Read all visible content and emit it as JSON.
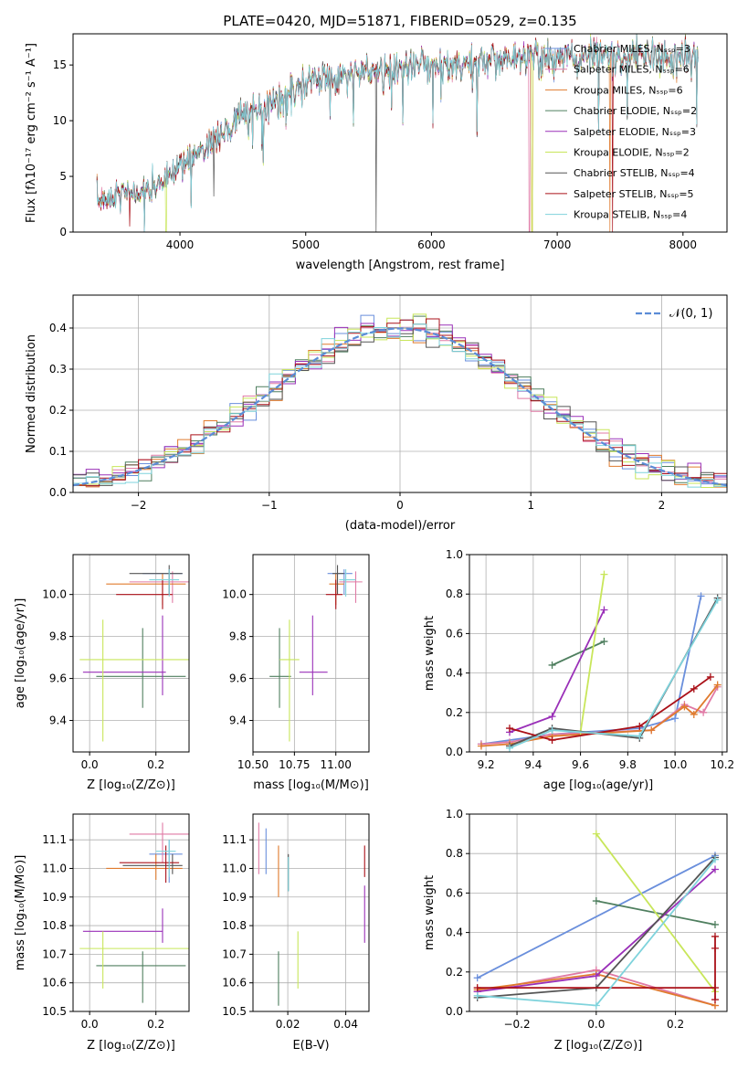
{
  "colors": {
    "chabrier_miles": "#6a8fdc",
    "salpeter_miles": "#e07aa5",
    "kroupa_miles": "#e07b2e",
    "chabrier_elodie": "#4f7f5f",
    "salpeter_elodie": "#9a30b8",
    "kroupa_elodie": "#c8e65a",
    "chabrier_stelib": "#555555",
    "salpeter_stelib": "#aa1018",
    "kroupa_stelib": "#7fd3dc",
    "normal": "#5b8cd6"
  },
  "chart_data": [
    {
      "id": "spectrum",
      "type": "line",
      "title": "PLATE=0420, MJD=51871, FIBERID=0529, z=0.135",
      "xlabel": "wavelength [Angstrom, rest frame]",
      "ylabel": "Flux [fλ10⁻¹⁷ erg cm⁻² s⁻¹ A⁻¹]",
      "xlim": [
        3150,
        8350
      ],
      "ylim": [
        0,
        17.8
      ],
      "xticks": [
        4000,
        5000,
        6000,
        7000,
        8000
      ],
      "yticks": [
        0,
        5,
        10,
        15
      ],
      "grid": false,
      "legend": "top-right",
      "spectrum_range": [
        3340,
        8120
      ],
      "shape_knots": [
        [
          3340,
          2.7
        ],
        [
          3500,
          3.4
        ],
        [
          3700,
          3.6
        ],
        [
          3850,
          4.3
        ],
        [
          4000,
          6.0
        ],
        [
          4200,
          7.6
        ],
        [
          4400,
          9.5
        ],
        [
          4600,
          11.0
        ],
        [
          4800,
          11.8
        ],
        [
          5000,
          13.2
        ],
        [
          5200,
          13.8
        ],
        [
          5400,
          14.3
        ],
        [
          5700,
          14.7
        ],
        [
          6000,
          15.0
        ],
        [
          6300,
          15.2
        ],
        [
          6600,
          15.5
        ],
        [
          7000,
          15.6
        ],
        [
          7400,
          15.8
        ],
        [
          7800,
          15.7
        ],
        [
          8120,
          15.6
        ]
      ],
      "series": [
        {
          "name": "Chabrier MILES, Nₛₛₚ=3",
          "color_key": "chabrier_miles"
        },
        {
          "name": "Salpeter MILES, Nₛₛₚ=6",
          "color_key": "salpeter_miles"
        },
        {
          "name": "Kroupa MILES, Nₛₛₚ=6",
          "color_key": "kroupa_miles"
        },
        {
          "name": "Chabrier ELODIE, Nₛₛₚ=2",
          "color_key": "chabrier_elodie"
        },
        {
          "name": "Salpeter ELODIE, Nₛₛₚ=3",
          "color_key": "salpeter_elodie"
        },
        {
          "name": "Kroupa ELODIE, Nₛₛₚ=2",
          "color_key": "kroupa_elodie"
        },
        {
          "name": "Chabrier STELIB, Nₛₛₚ=4",
          "color_key": "chabrier_stelib"
        },
        {
          "name": "Salpeter STELIB, Nₛₛₚ=5",
          "color_key": "salpeter_stelib"
        },
        {
          "name": "Kroupa STELIB, Nₛₛₚ=4",
          "color_key": "kroupa_stelib"
        }
      ]
    },
    {
      "id": "residuals",
      "type": "line",
      "xlabel": "(data-model)/error",
      "ylabel": "Normed distribution",
      "xlim": [
        -2.5,
        2.5
      ],
      "ylim": [
        0,
        0.48
      ],
      "xticks": [
        -2,
        -1,
        0,
        1,
        2
      ],
      "yticks": [
        0.0,
        0.1,
        0.2,
        0.3,
        0.4
      ],
      "grid": true,
      "legend": "top-right",
      "legend_label": "𝒩(0, 1)",
      "bin_width": 0.1
    },
    {
      "id": "z_age",
      "type": "scatter",
      "xlabel": "Z [log₁₀(Z/Z⊙)]",
      "ylabel": "age  [log₁₀(age/yr)]",
      "xlim": [
        -0.05,
        0.3
      ],
      "ylim": [
        9.25,
        10.19
      ],
      "xticks": [
        0.0,
        0.2
      ],
      "yticks": [
        9.4,
        9.6,
        9.8,
        10.0
      ],
      "grid": true,
      "points": [
        {
          "c": "chabrier_miles",
          "x": 0.24,
          "xe": [
            0.16,
            0.28
          ],
          "y": 10.1,
          "ye": [
            10.0,
            10.12
          ]
        },
        {
          "c": "salpeter_miles",
          "x": 0.25,
          "xe": [
            0.12,
            0.3
          ],
          "y": 10.06,
          "ye": [
            9.96,
            10.11
          ]
        },
        {
          "c": "kroupa_miles",
          "x": 0.22,
          "xe": [
            0.05,
            0.29
          ],
          "y": 10.05,
          "ye": [
            9.95,
            10.1
          ]
        },
        {
          "c": "chabrier_elodie",
          "x": 0.16,
          "xe": [
            0.02,
            0.29
          ],
          "y": 9.61,
          "ye": [
            9.46,
            9.84
          ]
        },
        {
          "c": "salpeter_elodie",
          "x": 0.22,
          "xe": [
            -0.02,
            0.23
          ],
          "y": 9.63,
          "ye": [
            9.52,
            9.9
          ]
        },
        {
          "c": "kroupa_elodie",
          "x": 0.04,
          "xe": [
            -0.03,
            0.3
          ],
          "y": 9.69,
          "ye": [
            9.3,
            9.88
          ]
        },
        {
          "c": "chabrier_stelib",
          "x": 0.24,
          "xe": [
            0.12,
            0.28
          ],
          "y": 10.1,
          "ye": [
            10.0,
            10.14
          ]
        },
        {
          "c": "salpeter_stelib",
          "x": 0.22,
          "xe": [
            0.08,
            0.25
          ],
          "y": 10.0,
          "ye": [
            9.93,
            10.07
          ]
        },
        {
          "c": "kroupa_stelib",
          "x": 0.24,
          "xe": [
            0.18,
            0.27
          ],
          "y": 10.07,
          "ye": [
            9.99,
            10.12
          ]
        }
      ]
    },
    {
      "id": "mass_age",
      "type": "scatter",
      "xlabel": "mass [log₁₀(M/M⊙)]",
      "ylabel": "",
      "xlim": [
        10.5,
        11.2
      ],
      "ylim": [
        9.25,
        10.19
      ],
      "xticks": [
        10.5,
        10.75,
        11.0
      ],
      "xticklabels": [
        "10.50",
        "10.75",
        "11.00"
      ],
      "yticks": [
        9.4,
        9.6,
        9.8,
        10.0
      ],
      "grid": true,
      "points": [
        {
          "c": "chabrier_miles",
          "x": 11.05,
          "xe": [
            10.95,
            11.1
          ],
          "y": 10.1,
          "ye": [
            10.0,
            10.12
          ]
        },
        {
          "c": "salpeter_miles",
          "x": 11.12,
          "xe": [
            11.02,
            11.16
          ],
          "y": 10.06,
          "ye": [
            9.96,
            10.11
          ]
        },
        {
          "c": "kroupa_miles",
          "x": 11.0,
          "xe": [
            10.96,
            11.05
          ],
          "y": 10.05,
          "ye": [
            9.95,
            10.1
          ]
        },
        {
          "c": "chabrier_elodie",
          "x": 10.66,
          "xe": [
            10.6,
            10.73
          ],
          "y": 9.61,
          "ye": [
            9.46,
            9.84
          ]
        },
        {
          "c": "salpeter_elodie",
          "x": 10.86,
          "xe": [
            10.78,
            10.95
          ],
          "y": 9.63,
          "ye": [
            9.52,
            9.9
          ]
        },
        {
          "c": "kroupa_elodie",
          "x": 10.72,
          "xe": [
            10.66,
            10.78
          ],
          "y": 9.69,
          "ye": [
            9.3,
            9.88
          ]
        },
        {
          "c": "chabrier_stelib",
          "x": 11.01,
          "xe": [
            10.98,
            11.05
          ],
          "y": 10.1,
          "ye": [
            10.0,
            10.14
          ]
        },
        {
          "c": "salpeter_stelib",
          "x": 11.0,
          "xe": [
            10.94,
            11.04
          ],
          "y": 10.0,
          "ye": [
            9.93,
            10.07
          ]
        },
        {
          "c": "kroupa_stelib",
          "x": 11.06,
          "xe": [
            11.02,
            11.12
          ],
          "y": 10.07,
          "ye": [
            9.99,
            10.12
          ]
        }
      ]
    },
    {
      "id": "age_weight",
      "type": "line",
      "xlabel": "age  [log₁₀(age/yr)]",
      "ylabel": "mass weight",
      "xlim": [
        9.13,
        10.22
      ],
      "ylim": [
        0,
        1.0
      ],
      "xticks": [
        9.2,
        9.4,
        9.6,
        9.8,
        10.0,
        10.2
      ],
      "yticks": [
        0.0,
        0.2,
        0.4,
        0.6,
        0.8,
        1.0
      ],
      "grid": true,
      "series": [
        {
          "c": "chabrier_miles",
          "x": [
            9.18,
            9.48,
            9.85,
            10.0,
            10.11
          ],
          "y": [
            0.04,
            0.09,
            0.12,
            0.17,
            0.79
          ]
        },
        {
          "c": "salpeter_miles",
          "x": [
            9.18,
            9.3,
            9.48,
            9.9,
            10.04,
            10.12,
            10.18
          ],
          "y": [
            0.04,
            0.05,
            0.09,
            0.11,
            0.24,
            0.2,
            0.33
          ]
        },
        {
          "c": "kroupa_miles",
          "x": [
            9.18,
            9.3,
            9.48,
            9.9,
            10.04,
            10.08,
            10.18
          ],
          "y": [
            0.03,
            0.04,
            0.08,
            0.11,
            0.23,
            0.19,
            0.34
          ]
        },
        {
          "c": "chabrier_elodie",
          "x": [
            9.48,
            9.7
          ],
          "y": [
            0.44,
            0.56
          ]
        },
        {
          "c": "salpeter_elodie",
          "x": [
            9.3,
            9.48,
            9.7
          ],
          "y": [
            0.1,
            0.18,
            0.72
          ]
        },
        {
          "c": "kroupa_elodie",
          "x": [
            9.6,
            9.7
          ],
          "y": [
            0.1,
            0.9
          ]
        },
        {
          "c": "chabrier_stelib",
          "x": [
            9.3,
            9.48,
            9.85,
            10.18
          ],
          "y": [
            0.03,
            0.12,
            0.07,
            0.78
          ]
        },
        {
          "c": "salpeter_stelib",
          "x": [
            9.3,
            9.48,
            9.85,
            10.08,
            10.15
          ],
          "y": [
            0.12,
            0.06,
            0.13,
            0.32,
            0.38
          ]
        },
        {
          "c": "kroupa_stelib",
          "x": [
            9.3,
            9.48,
            9.85,
            10.18
          ],
          "y": [
            0.02,
            0.11,
            0.08,
            0.77
          ]
        }
      ]
    },
    {
      "id": "z_mass",
      "type": "scatter",
      "xlabel": "Z [log₁₀(Z/Z⊙)]",
      "ylabel": "mass [log₁₀(M/M⊙)]",
      "xlim": [
        -0.05,
        0.3
      ],
      "ylim": [
        10.5,
        11.19
      ],
      "xticks": [
        0.0,
        0.2
      ],
      "yticks": [
        10.5,
        10.6,
        10.7,
        10.8,
        10.9,
        11.0,
        11.1
      ],
      "grid": true,
      "points": [
        {
          "c": "chabrier_miles",
          "x": 0.24,
          "xe": [
            0.18,
            0.28
          ],
          "y": 11.05,
          "ye": [
            10.95,
            11.1
          ]
        },
        {
          "c": "salpeter_miles",
          "x": 0.22,
          "xe": [
            0.12,
            0.3
          ],
          "y": 11.12,
          "ye": [
            11.02,
            11.16
          ]
        },
        {
          "c": "kroupa_miles",
          "x": 0.2,
          "xe": [
            0.05,
            0.28
          ],
          "y": 11.0,
          "ye": [
            10.96,
            11.05
          ]
        },
        {
          "c": "chabrier_elodie",
          "x": 0.16,
          "xe": [
            0.02,
            0.29
          ],
          "y": 10.66,
          "ye": [
            10.53,
            10.71
          ]
        },
        {
          "c": "salpeter_elodie",
          "x": 0.22,
          "xe": [
            -0.02,
            0.22
          ],
          "y": 10.78,
          "ye": [
            10.74,
            10.86
          ]
        },
        {
          "c": "kroupa_elodie",
          "x": 0.04,
          "xe": [
            -0.03,
            0.3
          ],
          "y": 10.72,
          "ye": [
            10.58,
            10.78
          ]
        },
        {
          "c": "chabrier_stelib",
          "x": 0.25,
          "xe": [
            0.1,
            0.28
          ],
          "y": 11.01,
          "ye": [
            10.98,
            11.05
          ]
        },
        {
          "c": "salpeter_stelib",
          "x": 0.23,
          "xe": [
            0.09,
            0.27
          ],
          "y": 11.02,
          "ye": [
            10.95,
            11.08
          ]
        },
        {
          "c": "kroupa_stelib",
          "x": 0.24,
          "xe": [
            0.2,
            0.26
          ],
          "y": 11.06,
          "ye": [
            10.97,
            11.1
          ]
        }
      ]
    },
    {
      "id": "ebv_mass",
      "type": "scatter",
      "xlabel": "E(B-V)",
      "ylabel": "",
      "xlim": [
        0.008,
        0.048
      ],
      "ylim": [
        10.5,
        11.19
      ],
      "xticks": [
        0.02,
        0.04
      ],
      "xticklabels": [
        "0.02",
        "0.04"
      ],
      "yticks": [
        10.5,
        10.6,
        10.7,
        10.8,
        10.9,
        11.0,
        11.1
      ],
      "grid": true,
      "points": [
        {
          "c": "chabrier_miles",
          "x": 0.0125,
          "y": 11.05,
          "ye": [
            10.98,
            11.14
          ]
        },
        {
          "c": "salpeter_miles",
          "x": 0.01,
          "y": 11.05,
          "ye": [
            10.98,
            11.16
          ]
        },
        {
          "c": "kroupa_miles",
          "x": 0.0168,
          "y": 10.99,
          "ye": [
            10.9,
            11.08
          ]
        },
        {
          "c": "chabrier_elodie",
          "x": 0.0168,
          "y": 10.62,
          "ye": [
            10.52,
            10.71
          ]
        },
        {
          "c": "salpeter_elodie",
          "x": 0.0465,
          "y": 10.84,
          "ye": [
            10.74,
            10.94
          ]
        },
        {
          "c": "kroupa_elodie",
          "x": 0.0235,
          "y": 10.68,
          "ye": [
            10.58,
            10.78
          ]
        },
        {
          "c": "chabrier_stelib",
          "x": 0.0202,
          "y": 11.01,
          "ye": [
            10.92,
            11.05
          ]
        },
        {
          "c": "salpeter_stelib",
          "x": 0.0465,
          "y": 11.02,
          "ye": [
            10.97,
            11.08
          ]
        },
        {
          "c": "kroupa_stelib",
          "x": 0.0202,
          "y": 10.96,
          "ye": [
            10.92,
            11.04
          ]
        }
      ]
    },
    {
      "id": "z_weight",
      "type": "line",
      "xlabel": "Z [log₁₀(Z/Z⊙)]",
      "ylabel": "mass weight",
      "xlim": [
        -0.32,
        0.33
      ],
      "ylim": [
        0,
        1.0
      ],
      "xticks": [
        -0.2,
        0.0,
        0.2
      ],
      "xticklabels": [
        "−0.2",
        "0.0",
        "0.2"
      ],
      "yticks": [
        0.0,
        0.2,
        0.4,
        0.6,
        0.8,
        1.0
      ],
      "grid": true,
      "series": [
        {
          "c": "chabrier_miles",
          "x": [
            -0.3,
            0.3
          ],
          "y": [
            0.17,
            0.79
          ]
        },
        {
          "c": "salpeter_miles",
          "x": [
            -0.3,
            0.0,
            0.3
          ],
          "y": [
            0.1,
            0.21,
            0.03
          ]
        },
        {
          "c": "kroupa_miles",
          "x": [
            -0.3,
            0.0,
            0.3
          ],
          "y": [
            0.11,
            0.19,
            0.03
          ]
        },
        {
          "c": "chabrier_elodie",
          "x": [
            0.0,
            0.3
          ],
          "y": [
            0.56,
            0.44
          ]
        },
        {
          "c": "salpeter_elodie",
          "x": [
            -0.3,
            0.0,
            0.3
          ],
          "y": [
            0.1,
            0.18,
            0.72
          ]
        },
        {
          "c": "kroupa_elodie",
          "x": [
            0.0,
            0.3
          ],
          "y": [
            0.9,
            0.1
          ]
        },
        {
          "c": "chabrier_stelib",
          "x": [
            -0.3,
            0.0,
            0.3
          ],
          "y": [
            0.07,
            0.12,
            0.78
          ]
        },
        {
          "c": "salpeter_stelib",
          "x": [
            -0.3,
            0.3,
            0.3,
            0.3,
            0.3
          ],
          "y": [
            0.12,
            0.12,
            0.38,
            0.32,
            0.06
          ]
        },
        {
          "c": "kroupa_stelib",
          "x": [
            -0.3,
            0.0,
            0.3
          ],
          "y": [
            0.08,
            0.03,
            0.77
          ]
        }
      ]
    }
  ]
}
